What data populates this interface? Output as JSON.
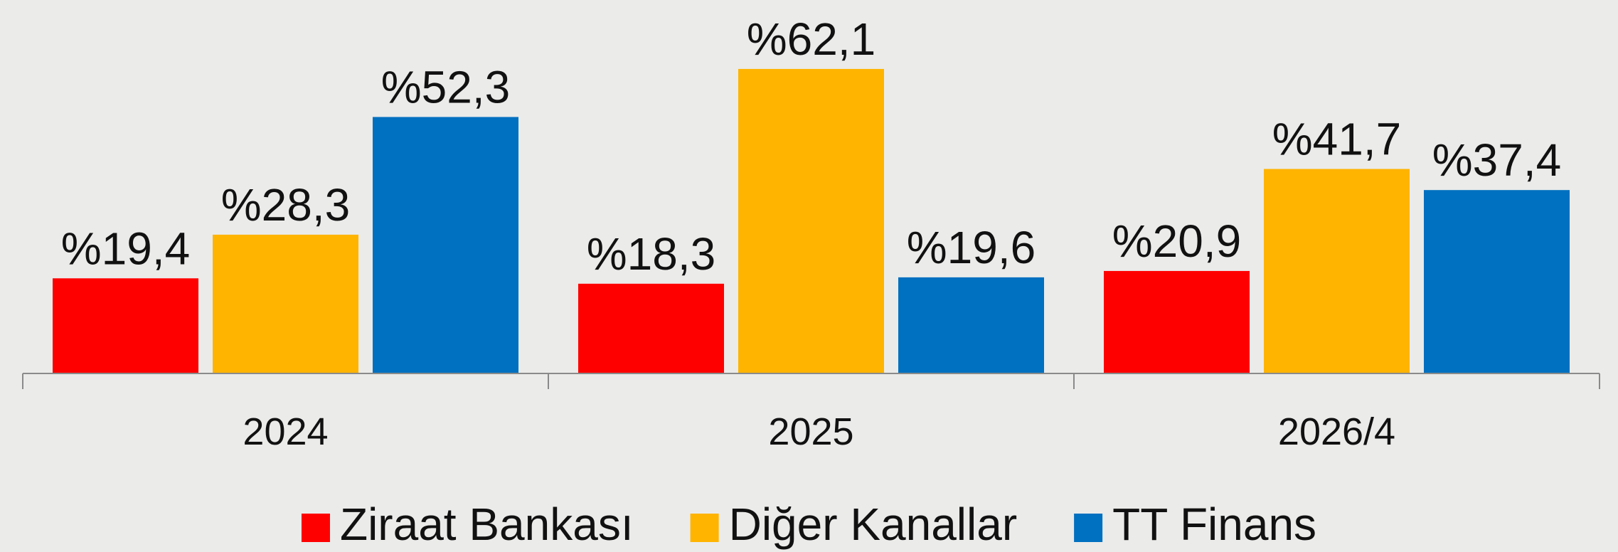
{
  "chart_data": {
    "type": "bar",
    "categories": [
      "2024",
      "2025",
      "2026/4"
    ],
    "series": [
      {
        "name": "Ziraat Bankası",
        "color": "#ff0000",
        "values": [
          19.4,
          18.3,
          20.9
        ],
        "value_labels": [
          "%19,4",
          "%18,3",
          "%20,9"
        ]
      },
      {
        "name": "Diğer Kanallar",
        "color": "#ffb400",
        "values": [
          28.3,
          62.1,
          41.7
        ],
        "value_labels": [
          "%28,3",
          "%62,1",
          "%41,7"
        ]
      },
      {
        "name": "TT Finans",
        "color": "#0070c0",
        "values": [
          52.3,
          19.6,
          37.4
        ],
        "value_labels": [
          "%52,3",
          "%19,6",
          "%37,4"
        ]
      }
    ],
    "ylim": [
      0,
      75
    ],
    "legend": "bottom"
  }
}
